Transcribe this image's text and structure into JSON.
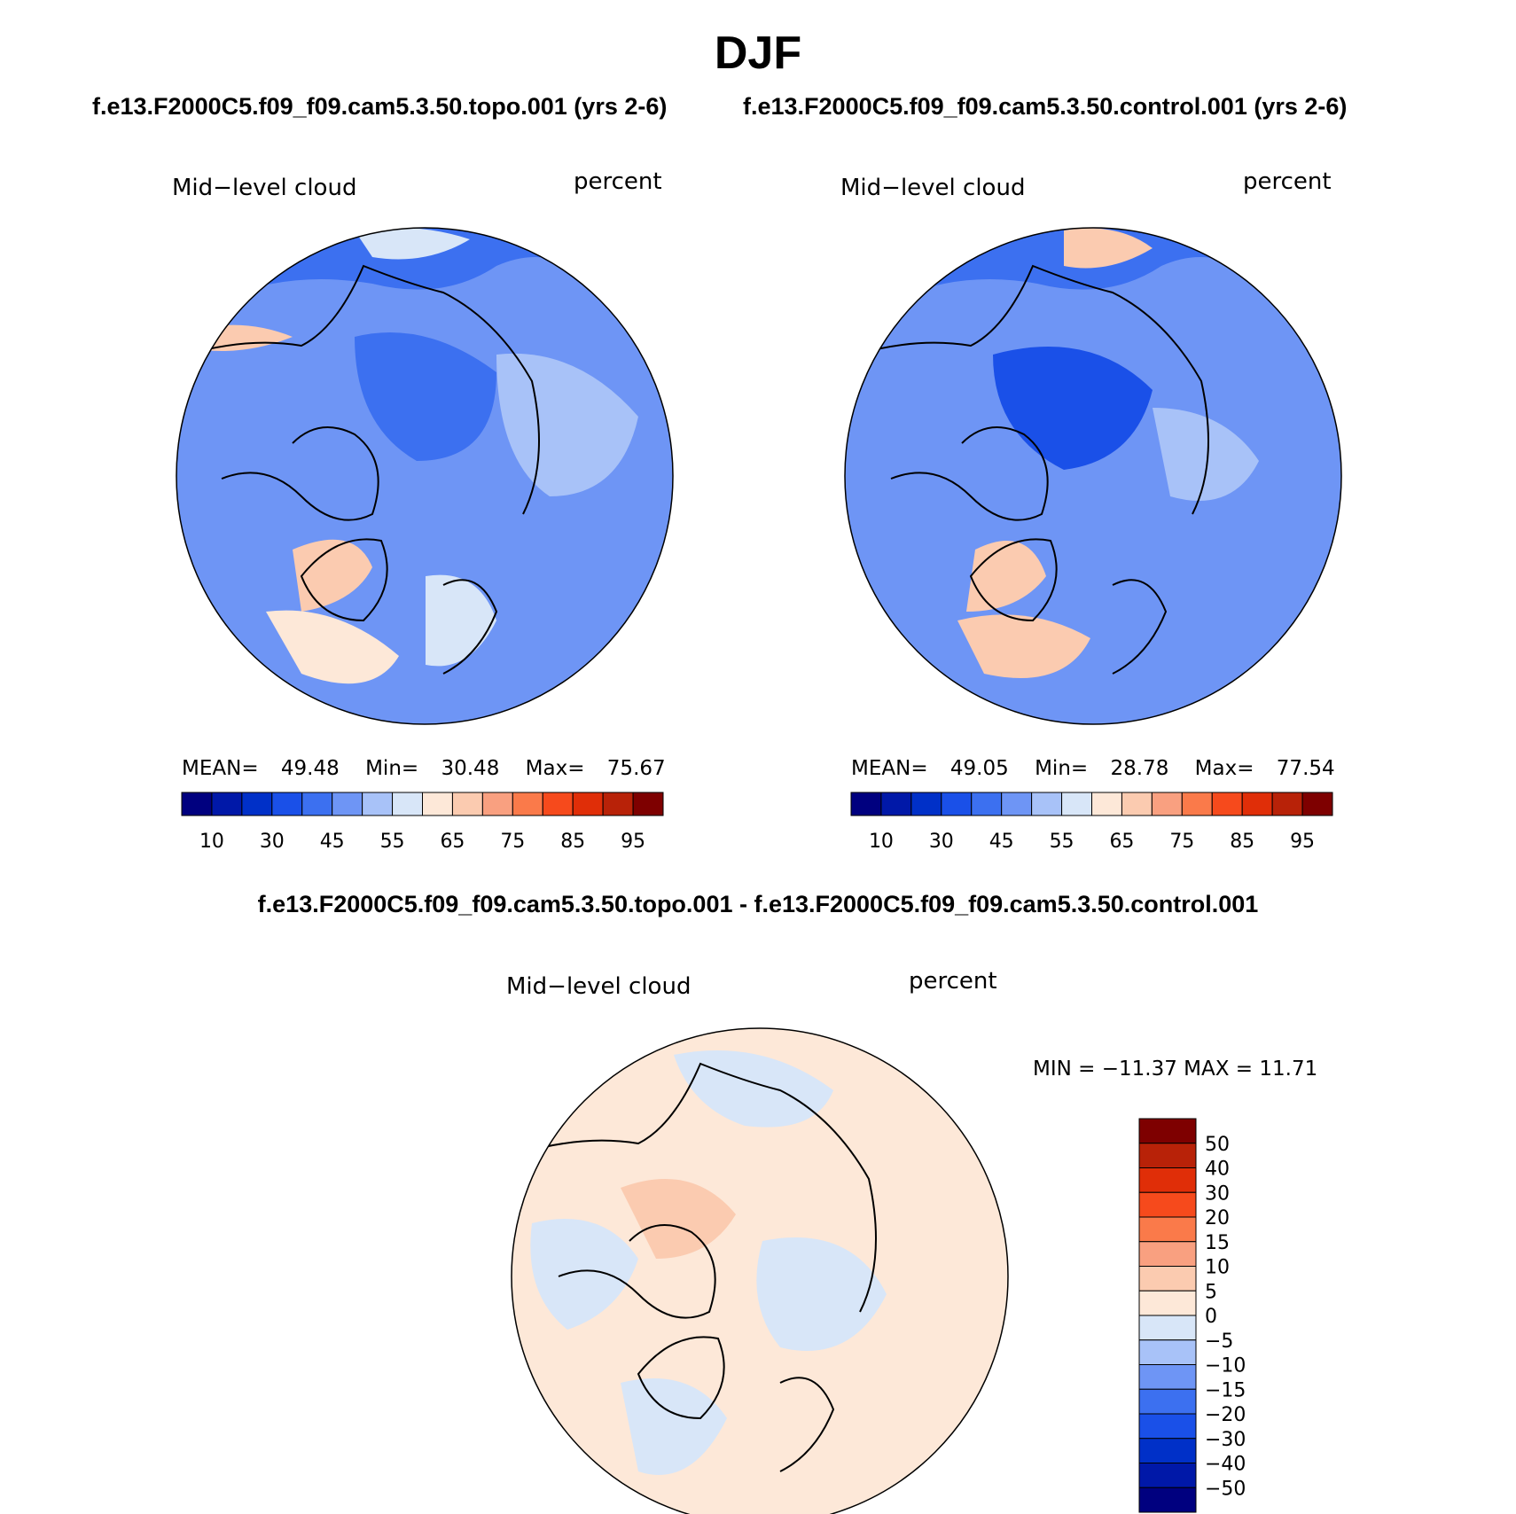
{
  "title": "DJF",
  "colors": {
    "levels_abs": [
      "#00007f",
      "#0018a8",
      "#0030c8",
      "#1a50e8",
      "#3c70f0",
      "#6e95f5",
      "#a8c2f8",
      "#d8e6f8",
      "#fde8d8",
      "#fbcbb0",
      "#f9a080",
      "#fa7a4a",
      "#f64a1c",
      "#e02e08",
      "#b82208",
      "#7e0000"
    ],
    "levels_diff": [
      "#00007f",
      "#0018a8",
      "#0030c8",
      "#1a50e8",
      "#3c70f0",
      "#6e95f5",
      "#a8c2f8",
      "#d8e6f8",
      "#fde8d8",
      "#fbcbb0",
      "#f9a080",
      "#fa7a4a",
      "#f64a1c",
      "#e02e08",
      "#b82208",
      "#7e0000"
    ]
  },
  "panels": {
    "topo": {
      "case": "f.e13.F2000C5.f09_f09.cam5.3.50.topo.001 (yrs 2-6)",
      "variable": "Mid−level cloud",
      "units": "percent",
      "mean_label": "MEAN=",
      "mean": "49.48",
      "min_label": "Min=",
      "min": "30.48",
      "max_label": "Max=",
      "max": "75.67",
      "colorbar_labels": [
        "10",
        "30",
        "45",
        "55",
        "65",
        "75",
        "85",
        "95"
      ]
    },
    "control": {
      "case": "f.e13.F2000C5.f09_f09.cam5.3.50.control.001 (yrs 2-6)",
      "variable": "Mid−level cloud",
      "units": "percent",
      "mean_label": "MEAN=",
      "mean": "49.05",
      "min_label": "Min=",
      "min": "28.78",
      "max_label": "Max=",
      "max": "77.54",
      "colorbar_labels": [
        "10",
        "30",
        "45",
        "55",
        "65",
        "75",
        "85",
        "95"
      ]
    },
    "diff": {
      "title": "f.e13.F2000C5.f09_f09.cam5.3.50.topo.001 - f.e13.F2000C5.f09_f09.cam5.3.50.control.001",
      "variable": "Mid−level cloud",
      "units": "percent",
      "minmax_text": "MIN = −11.37 MAX =   11.71",
      "colorbar_labels": [
        "50",
        "40",
        "30",
        "20",
        "15",
        "10",
        "5",
        "0",
        "−5",
        "−10",
        "−15",
        "−20",
        "−30",
        "−40",
        "−50"
      ]
    }
  }
}
